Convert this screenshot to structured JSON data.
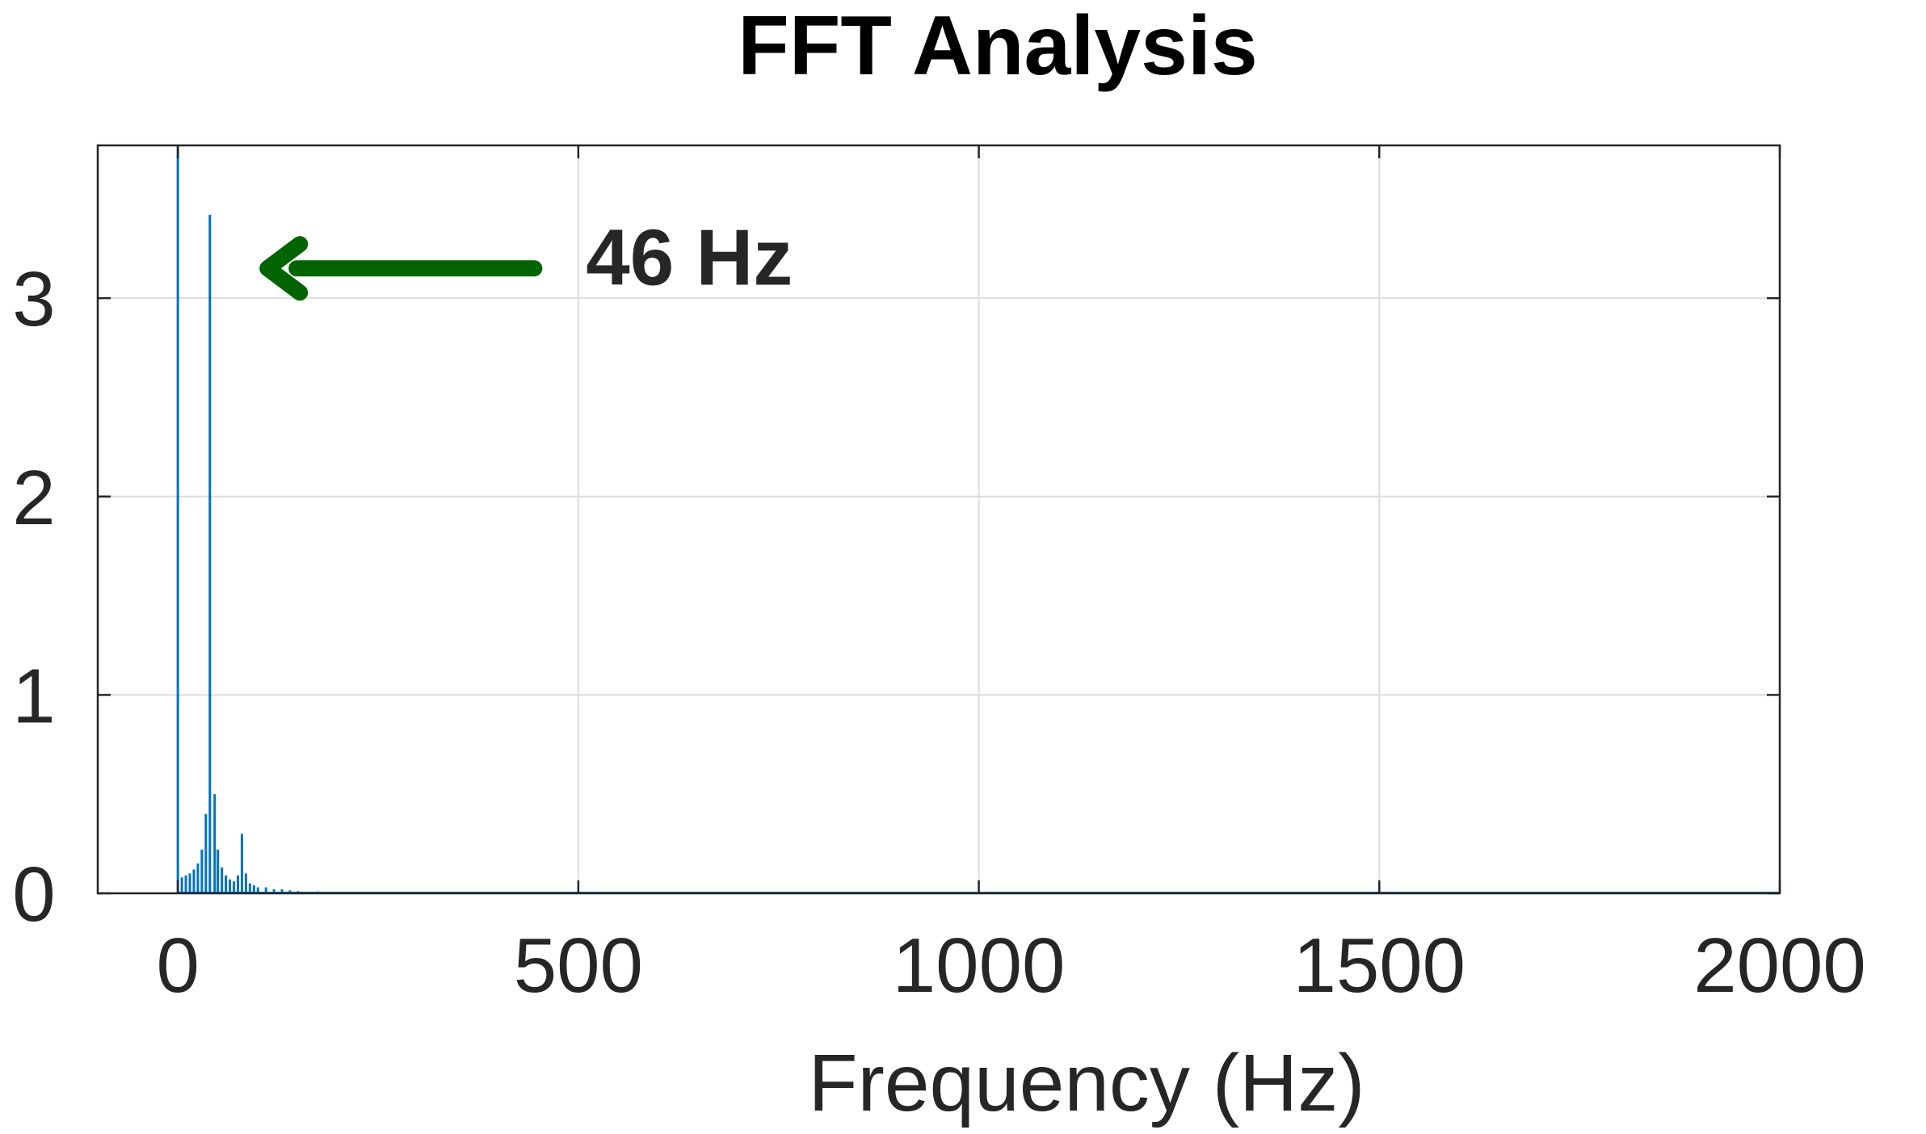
{
  "chart_data": {
    "type": "bar",
    "title": "FFT Analysis",
    "xlabel": "Frequency (Hz)",
    "ylabel": "",
    "xlim": [
      -100,
      2000
    ],
    "ylim": [
      0,
      3.77
    ],
    "xticks": [
      0,
      500,
      1000,
      1500,
      2000
    ],
    "yticks": [
      0,
      1,
      2,
      3
    ],
    "grid": true,
    "bar_color": "#0072BD",
    "annotation": {
      "text": "46 Hz",
      "arrow_color": "#006400",
      "arrow_from": [
        445,
        3.15
      ],
      "arrow_to": [
        112,
        3.15
      ],
      "text_position": [
        570,
        3.15
      ]
    },
    "x": [
      0,
      5,
      10,
      15,
      20,
      25,
      30,
      35,
      40,
      46,
      50,
      55,
      60,
      65,
      70,
      75,
      80,
      85,
      90,
      95,
      100,
      110,
      120,
      130,
      140,
      150,
      175,
      200,
      250,
      300,
      350,
      400,
      500,
      600,
      700,
      800,
      900,
      1000,
      1200,
      1400,
      1600,
      1800,
      2000
    ],
    "values": [
      3.77,
      0.08,
      0.09,
      0.1,
      0.12,
      0.15,
      0.22,
      0.4,
      3.42,
      0.5,
      0.22,
      0.13,
      0.09,
      0.07,
      0.06,
      0.09,
      0.3,
      0.1,
      0.05,
      0.04,
      0.03,
      0.03,
      0.02,
      0.02,
      0.015,
      0.012,
      0.01,
      0.008,
      0.006,
      0.005,
      0.004,
      0.004,
      0.003,
      0.003,
      0.002,
      0.002,
      0.002,
      0.002,
      0.002,
      0.002,
      0.002,
      0.002,
      0.002
    ]
  }
}
